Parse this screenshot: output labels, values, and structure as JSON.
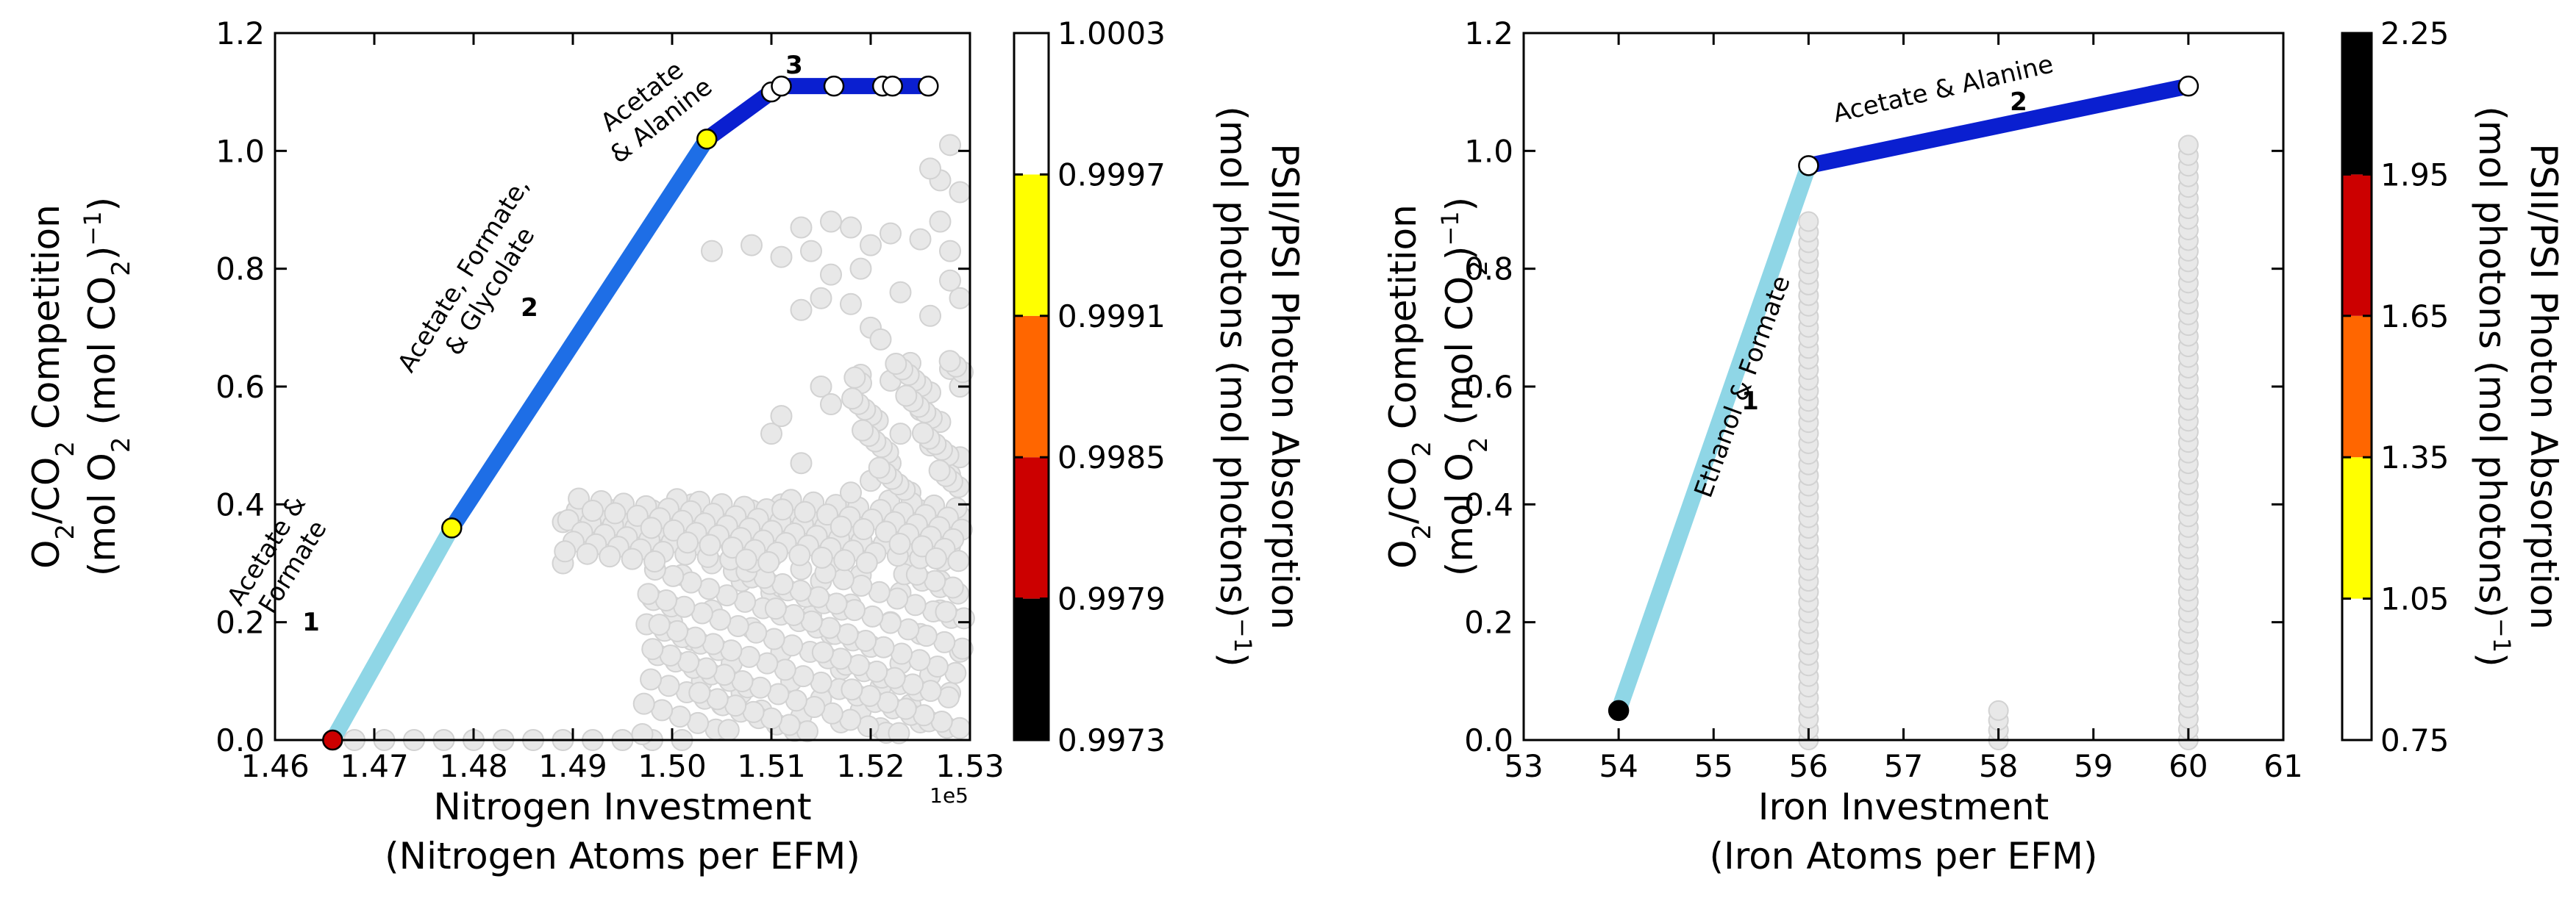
{
  "chart_data": [
    {
      "type": "scatter",
      "panel": "left",
      "xlabel_line1": "Nitrogen Investment",
      "xlabel_line2": "(Nitrogen Atoms per EFM)",
      "x_exponent_label": "1e5",
      "ylabel_line1": "O2/CO2 Competition",
      "ylabel_line2": "(mol O2 (mol CO2)−1)",
      "xlim": [
        1.46,
        1.53
      ],
      "ylim": [
        0.0,
        1.2
      ],
      "x_ticks": [
        "1.46",
        "1.47",
        "1.48",
        "1.49",
        "1.50",
        "1.51",
        "1.52",
        "1.53"
      ],
      "y_ticks": [
        "0.0",
        "0.2",
        "0.4",
        "0.6",
        "0.8",
        "1.0",
        "1.2"
      ],
      "colorbar": {
        "label": "PSII/PSI Photon Absorption (mol photons (mol photons)−1)",
        "ticks": [
          "0.9973",
          "0.9979",
          "0.9985",
          "0.9991",
          "0.9997",
          "1.0003"
        ],
        "bands": [
          {
            "from": 0.9973,
            "to": 0.9979,
            "color": "#000000"
          },
          {
            "from": 0.9979,
            "to": 0.9985,
            "color": "#cc0000"
          },
          {
            "from": 0.9985,
            "to": 0.9991,
            "color": "#ff6600"
          },
          {
            "from": 0.9991,
            "to": 0.9997,
            "color": "#ffff00"
          },
          {
            "from": 0.9997,
            "to": 1.0003,
            "color": "#ffffff"
          }
        ]
      },
      "frontier": [
        {
          "x": 1.4658,
          "y": 0.0,
          "color": "#cc0000"
        },
        {
          "x": 1.4778,
          "y": 0.36,
          "color": "#ffff00"
        },
        {
          "x": 1.5035,
          "y": 1.02,
          "color": "#ffff00"
        },
        {
          "x": 1.51,
          "y": 1.1,
          "color": "#ffffff"
        },
        {
          "x": 1.511,
          "y": 1.11,
          "color": "#ffffff"
        },
        {
          "x": 1.5163,
          "y": 1.11,
          "color": "#ffffff"
        },
        {
          "x": 1.5212,
          "y": 1.11,
          "color": "#ffffff"
        },
        {
          "x": 1.5222,
          "y": 1.11,
          "color": "#ffffff"
        },
        {
          "x": 1.5258,
          "y": 1.11,
          "color": "#ffffff"
        }
      ],
      "segments": [
        {
          "id": "1",
          "from": 0,
          "to": 1,
          "color": "#8fd6e6",
          "label_lines": [
            "Acetate &",
            "Formate"
          ]
        },
        {
          "id": "2",
          "from": 1,
          "to": 2,
          "color": "#1e6ee6",
          "label_lines": [
            "Acetate, Formate,",
            "& Glycolate"
          ]
        },
        {
          "id": "3",
          "from": 2,
          "to": 8,
          "color": "#0a1fd0",
          "label_lines": [
            "Acetate",
            "& Alanine"
          ]
        }
      ],
      "background_points": [
        [
          1.468,
          0.0
        ],
        [
          1.471,
          0.0
        ],
        [
          1.474,
          0.0
        ],
        [
          1.477,
          0.0
        ],
        [
          1.48,
          0.0
        ],
        [
          1.483,
          0.0
        ],
        [
          1.486,
          0.0
        ],
        [
          1.489,
          0.0
        ],
        [
          1.492,
          0.0
        ],
        [
          1.495,
          0.0
        ],
        [
          1.498,
          0.0
        ],
        [
          1.501,
          0.0
        ],
        [
          1.489,
          0.37
        ],
        [
          1.492,
          0.36
        ],
        [
          1.494,
          0.39
        ],
        [
          1.496,
          0.37
        ],
        [
          1.497,
          0.34
        ],
        [
          1.498,
          0.39
        ],
        [
          1.499,
          0.32
        ],
        [
          1.5,
          0.37
        ],
        [
          1.501,
          0.28
        ],
        [
          1.502,
          0.4
        ],
        [
          1.503,
          0.35
        ],
        [
          1.504,
          0.3
        ],
        [
          1.505,
          0.38
        ],
        [
          1.506,
          0.33
        ],
        [
          1.507,
          0.27
        ],
        [
          1.508,
          0.39
        ],
        [
          1.509,
          0.36
        ],
        [
          1.51,
          0.31
        ],
        [
          1.511,
          0.4
        ],
        [
          1.512,
          0.35
        ],
        [
          1.513,
          0.29
        ],
        [
          1.514,
          0.38
        ],
        [
          1.515,
          0.33
        ],
        [
          1.516,
          0.37
        ],
        [
          1.517,
          0.3
        ],
        [
          1.518,
          0.39
        ],
        [
          1.519,
          0.35
        ],
        [
          1.52,
          0.32
        ],
        [
          1.521,
          0.38
        ],
        [
          1.522,
          0.34
        ],
        [
          1.523,
          0.36
        ],
        [
          1.524,
          0.31
        ],
        [
          1.525,
          0.39
        ],
        [
          1.526,
          0.35
        ],
        [
          1.527,
          0.37
        ],
        [
          1.528,
          0.33
        ],
        [
          1.529,
          0.38
        ],
        [
          1.498,
          0.24
        ],
        [
          1.5,
          0.2
        ],
        [
          1.502,
          0.17
        ],
        [
          1.504,
          0.22
        ],
        [
          1.506,
          0.13
        ],
        [
          1.508,
          0.19
        ],
        [
          1.51,
          0.25
        ],
        [
          1.511,
          0.15
        ],
        [
          1.512,
          0.1
        ],
        [
          1.514,
          0.21
        ],
        [
          1.515,
          0.07
        ],
        [
          1.516,
          0.18
        ],
        [
          1.517,
          0.12
        ],
        [
          1.518,
          0.23
        ],
        [
          1.519,
          0.05
        ],
        [
          1.52,
          0.16
        ],
        [
          1.521,
          0.09
        ],
        [
          1.522,
          0.2
        ],
        [
          1.523,
          0.13
        ],
        [
          1.524,
          0.06
        ],
        [
          1.525,
          0.18
        ],
        [
          1.526,
          0.11
        ],
        [
          1.527,
          0.22
        ],
        [
          1.528,
          0.08
        ],
        [
          1.529,
          0.15
        ],
        [
          1.513,
          0.04
        ],
        [
          1.517,
          0.03
        ],
        [
          1.521,
          0.02
        ],
        [
          1.525,
          0.03
        ],
        [
          1.509,
          0.05
        ],
        [
          1.505,
          0.06
        ],
        [
          1.503,
          0.1
        ],
        [
          1.507,
          0.08
        ],
        [
          1.511,
          0.26
        ],
        [
          1.515,
          0.27
        ],
        [
          1.519,
          0.28
        ],
        [
          1.523,
          0.25
        ],
        [
          1.527,
          0.27
        ],
        [
          1.52,
          0.44
        ],
        [
          1.522,
          0.47
        ],
        [
          1.524,
          0.42
        ],
        [
          1.526,
          0.5
        ],
        [
          1.528,
          0.45
        ],
        [
          1.523,
          0.52
        ],
        [
          1.525,
          0.56
        ],
        [
          1.527,
          0.54
        ],
        [
          1.529,
          0.48
        ],
        [
          1.51,
          0.52
        ],
        [
          1.511,
          0.55
        ],
        [
          1.515,
          0.6
        ],
        [
          1.519,
          0.62
        ],
        [
          1.522,
          0.61
        ],
        [
          1.524,
          0.64
        ],
        [
          1.526,
          0.59
        ],
        [
          1.528,
          0.63
        ],
        [
          1.529,
          0.6
        ],
        [
          1.516,
          0.57
        ],
        [
          1.513,
          0.47
        ],
        [
          1.504,
          0.83
        ],
        [
          1.508,
          0.84
        ],
        [
          1.511,
          0.82
        ],
        [
          1.513,
          0.87
        ],
        [
          1.516,
          0.88
        ],
        [
          1.518,
          0.87
        ],
        [
          1.52,
          0.84
        ],
        [
          1.522,
          0.86
        ],
        [
          1.525,
          0.85
        ],
        [
          1.527,
          0.88
        ],
        [
          1.528,
          0.83
        ],
        [
          1.514,
          0.83
        ],
        [
          1.513,
          0.73
        ],
        [
          1.515,
          0.75
        ],
        [
          1.518,
          0.74
        ],
        [
          1.52,
          0.7
        ],
        [
          1.521,
          0.68
        ],
        [
          1.523,
          0.76
        ],
        [
          1.526,
          0.72
        ],
        [
          1.529,
          0.75
        ],
        [
          1.519,
          0.8
        ],
        [
          1.516,
          0.79
        ],
        [
          1.528,
          0.78
        ],
        [
          1.527,
          0.95
        ],
        [
          1.528,
          1.01
        ],
        [
          1.529,
          0.93
        ],
        [
          1.526,
          0.97
        ]
      ]
    },
    {
      "type": "scatter",
      "panel": "right",
      "xlabel_line1": "Iron Investment",
      "xlabel_line2": "(Iron Atoms per EFM)",
      "ylabel_line1": "O2/CO2 Competition",
      "ylabel_line2": "(mol O2 (mol CO2)−1)",
      "xlim": [
        53,
        61
      ],
      "ylim": [
        0.0,
        1.2
      ],
      "x_ticks": [
        "53",
        "54",
        "55",
        "56",
        "57",
        "58",
        "59",
        "60",
        "61"
      ],
      "y_ticks": [
        "0.0",
        "0.2",
        "0.4",
        "0.6",
        "0.8",
        "1.0",
        "1.2"
      ],
      "colorbar": {
        "label": "PSII/PSI Photon Absorption (mol photons (mol photons)−1)",
        "ticks": [
          "0.75",
          "1.05",
          "1.35",
          "1.65",
          "1.95",
          "2.25"
        ],
        "bands": [
          {
            "from": 0.75,
            "to": 1.05,
            "color": "#ffffff"
          },
          {
            "from": 1.05,
            "to": 1.35,
            "color": "#ffff00"
          },
          {
            "from": 1.35,
            "to": 1.65,
            "color": "#ff6600"
          },
          {
            "from": 1.65,
            "to": 1.95,
            "color": "#cc0000"
          },
          {
            "from": 1.95,
            "to": 2.25,
            "color": "#000000"
          }
        ]
      },
      "frontier": [
        {
          "x": 54,
          "y": 0.05,
          "color": "#000000"
        },
        {
          "x": 56,
          "y": 0.975,
          "color": "#ffffff"
        },
        {
          "x": 60,
          "y": 1.11,
          "color": "#ffffff"
        }
      ],
      "segments": [
        {
          "id": "1",
          "from": 0,
          "to": 1,
          "color": "#8fd6e6",
          "label_lines": [
            "Ethanol & Formate"
          ]
        },
        {
          "id": "2",
          "from": 1,
          "to": 2,
          "color": "#0a1fd0",
          "label_lines": [
            "Acetate & Alanine"
          ]
        }
      ],
      "background_columns": [
        {
          "x": 56,
          "y_min": 0.0,
          "y_max": 0.88
        },
        {
          "x": 58,
          "y_min": 0.0,
          "y_max": 0.05
        },
        {
          "x": 60,
          "y_min": 0.0,
          "y_max": 1.01
        }
      ]
    }
  ]
}
